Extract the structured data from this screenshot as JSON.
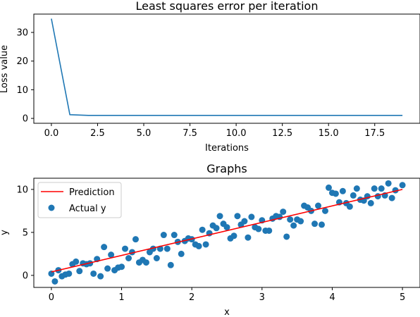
{
  "chart_data": [
    {
      "type": "line",
      "title": "Least squares error per iteration",
      "xlabel": "Iterations",
      "ylabel": "Loss value",
      "xlim": [
        -0.95,
        19.95
      ],
      "ylim": [
        -1.7,
        36.4
      ],
      "xticks": [
        0,
        2.5,
        5,
        7.5,
        10,
        12.5,
        15,
        17.5
      ],
      "xtick_labels": [
        "0.0",
        "2.5",
        "5.0",
        "7.5",
        "10.0",
        "12.5",
        "15.0",
        "17.5"
      ],
      "yticks": [
        0,
        10,
        20,
        30
      ],
      "ytick_labels": [
        "0",
        "10",
        "20",
        "30"
      ],
      "grid": false,
      "series": [
        {
          "color": "#1f77b4",
          "x": [
            0,
            1,
            2,
            3,
            4,
            5,
            6,
            7,
            8,
            9,
            10,
            11,
            12,
            13,
            14,
            15,
            16,
            17,
            18,
            19
          ],
          "y": [
            34.8,
            1.3,
            1.05,
            1.04,
            1.04,
            1.04,
            1.04,
            1.04,
            1.04,
            1.04,
            1.04,
            1.04,
            1.04,
            1.04,
            1.04,
            1.04,
            1.04,
            1.04,
            1.04,
            1.04
          ]
        }
      ]
    },
    {
      "type": "scatter",
      "title": "Graphs",
      "xlabel": "x",
      "ylabel": "y",
      "xlim": [
        -0.25,
        5.25
      ],
      "ylim": [
        -1.4,
        11.3
      ],
      "xticks": [
        0,
        1,
        2,
        3,
        4,
        5
      ],
      "xtick_labels": [
        "0",
        "1",
        "2",
        "3",
        "4",
        "5"
      ],
      "yticks": [
        0,
        5,
        10
      ],
      "ytick_labels": [
        "0",
        "5",
        "10"
      ],
      "grid": false,
      "legend": "top-left",
      "line_series": {
        "name": "Prediction",
        "color": "#ff0000",
        "x": [
          0,
          5
        ],
        "y": [
          0.4,
          10.0
        ]
      },
      "scatter_series": {
        "name": "Actual y",
        "color": "#1f77b4",
        "points": [
          [
            0.0,
            0.2
          ],
          [
            0.05,
            -0.7
          ],
          [
            0.1,
            0.6
          ],
          [
            0.15,
            -0.1
          ],
          [
            0.2,
            0.1
          ],
          [
            0.25,
            0.2
          ],
          [
            0.3,
            1.3
          ],
          [
            0.35,
            1.6
          ],
          [
            0.4,
            0.5
          ],
          [
            0.45,
            1.4
          ],
          [
            0.5,
            1.3
          ],
          [
            0.55,
            1.4
          ],
          [
            0.6,
            0.2
          ],
          [
            0.65,
            1.9
          ],
          [
            0.7,
            -0.1
          ],
          [
            0.75,
            3.3
          ],
          [
            0.8,
            0.8
          ],
          [
            0.85,
            2.4
          ],
          [
            0.9,
            0.6
          ],
          [
            0.95,
            0.9
          ],
          [
            1.0,
            1.0
          ],
          [
            1.05,
            3.1
          ],
          [
            1.1,
            2.0
          ],
          [
            1.15,
            2.7
          ],
          [
            1.2,
            4.2
          ],
          [
            1.25,
            1.5
          ],
          [
            1.3,
            1.8
          ],
          [
            1.35,
            1.5
          ],
          [
            1.4,
            2.7
          ],
          [
            1.45,
            3.1
          ],
          [
            1.5,
            2.0
          ],
          [
            1.55,
            3.1
          ],
          [
            1.6,
            4.7
          ],
          [
            1.65,
            3.1
          ],
          [
            1.7,
            1.2
          ],
          [
            1.75,
            4.7
          ],
          [
            1.8,
            3.9
          ],
          [
            1.85,
            2.5
          ],
          [
            1.9,
            4.0
          ],
          [
            1.95,
            4.3
          ],
          [
            2.0,
            4.2
          ],
          [
            2.05,
            3.6
          ],
          [
            2.1,
            3.4
          ],
          [
            2.15,
            5.3
          ],
          [
            2.2,
            3.6
          ],
          [
            2.25,
            4.9
          ],
          [
            2.3,
            5.8
          ],
          [
            2.35,
            5.5
          ],
          [
            2.4,
            6.9
          ],
          [
            2.45,
            6.0
          ],
          [
            2.5,
            5.6
          ],
          [
            2.55,
            4.3
          ],
          [
            2.6,
            4.6
          ],
          [
            2.65,
            6.9
          ],
          [
            2.7,
            5.9
          ],
          [
            2.75,
            6.3
          ],
          [
            2.8,
            4.4
          ],
          [
            2.85,
            6.8
          ],
          [
            2.9,
            5.6
          ],
          [
            2.95,
            5.4
          ],
          [
            3.0,
            6.4
          ],
          [
            3.05,
            5.2
          ],
          [
            3.1,
            5.2
          ],
          [
            3.15,
            6.6
          ],
          [
            3.2,
            6.9
          ],
          [
            3.25,
            6.8
          ],
          [
            3.3,
            7.4
          ],
          [
            3.35,
            4.5
          ],
          [
            3.4,
            6.5
          ],
          [
            3.45,
            5.8
          ],
          [
            3.5,
            6.5
          ],
          [
            3.55,
            6.3
          ],
          [
            3.6,
            8.1
          ],
          [
            3.65,
            7.9
          ],
          [
            3.7,
            7.5
          ],
          [
            3.75,
            6.0
          ],
          [
            3.8,
            8.1
          ],
          [
            3.85,
            5.9
          ],
          [
            3.9,
            7.5
          ],
          [
            3.95,
            10.2
          ],
          [
            4.0,
            9.6
          ],
          [
            4.05,
            9.5
          ],
          [
            4.1,
            8.5
          ],
          [
            4.15,
            9.8
          ],
          [
            4.2,
            8.4
          ],
          [
            4.25,
            8.0
          ],
          [
            4.3,
            9.3
          ],
          [
            4.35,
            10.1
          ],
          [
            4.4,
            8.8
          ],
          [
            4.45,
            8.7
          ],
          [
            4.5,
            9.2
          ],
          [
            4.55,
            8.4
          ],
          [
            4.6,
            10.1
          ],
          [
            4.65,
            9.2
          ],
          [
            4.7,
            10.1
          ],
          [
            4.75,
            9.3
          ],
          [
            4.8,
            10.7
          ],
          [
            4.85,
            9.0
          ],
          [
            4.9,
            9.9
          ],
          [
            5.0,
            10.5
          ]
        ]
      }
    }
  ]
}
